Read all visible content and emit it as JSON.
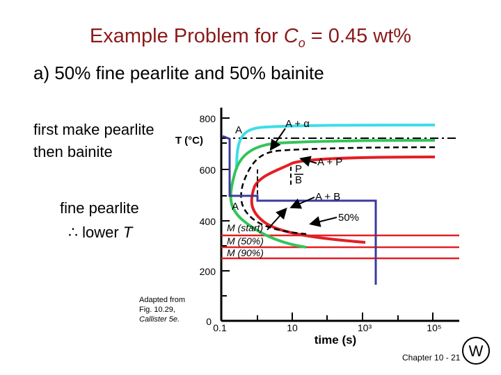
{
  "slide": {
    "title_prefix": "Example Problem for ",
    "title_var": "C",
    "title_sub": "o",
    "title_suffix": " = 0.45 wt%",
    "subtitle": "a) 50% fine pearlite and 50% bainite",
    "step1": "first make pearlite",
    "step2": "then bainite",
    "reason1": "fine pearlite",
    "therefore": "∴",
    "reason2_prefix": "lower ",
    "reason2_var": "T",
    "credit_line1": "Adapted from",
    "credit_line2": "Fig. 10.29,",
    "credit_line3": "Callister 5e.",
    "footer": "Chapter 10 - 21",
    "logo_letters": "W"
  },
  "diagram": {
    "y_axis_label": "T (°C)",
    "x_axis_label": "time (s)",
    "y_ticks": [
      "800",
      "600",
      "400",
      "200",
      "0"
    ],
    "x_ticks": [
      "0.1",
      "10",
      "10³",
      "10⁵"
    ],
    "region_labels": {
      "austenite_top": "A",
      "a_plus_alpha": "A + α",
      "pearlite": "P",
      "bainite": "B",
      "a_plus_p": "A + P",
      "a_plus_b": "A + B",
      "austenite_low": "A",
      "fifty_percent": "50%",
      "m_start": "M (start)",
      "m_50": "M (50%)",
      "m_90": "M (90%)"
    },
    "colors": {
      "title": "#8b1a1a",
      "a_plus_alpha_curve": "#3ddde8",
      "pearlite_start_curve": "#35c45a",
      "pearlite_end_curve": "#e21f26",
      "heat_treatment_path": "#3b3b9e",
      "martensite_lines": "#e21f26"
    }
  }
}
